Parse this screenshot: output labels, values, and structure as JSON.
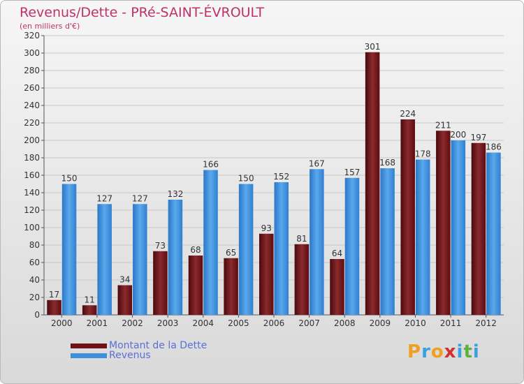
{
  "title": "Revenus/Dette - PRé-SAINT-ÉVROULT",
  "subtitle": "(en milliers d'€)",
  "chart_data": {
    "type": "bar",
    "categories": [
      "2000",
      "2001",
      "2002",
      "2003",
      "2004",
      "2005",
      "2006",
      "2007",
      "2008",
      "2009",
      "2010",
      "2011",
      "2012"
    ],
    "series": [
      {
        "name": "Montant de la Dette",
        "color": "#6e1016",
        "values": [
          17,
          11,
          34,
          73,
          68,
          65,
          93,
          81,
          64,
          301,
          224,
          211,
          197
        ]
      },
      {
        "name": "Revenus",
        "color": "#3d8fd9",
        "values": [
          150,
          127,
          127,
          132,
          166,
          150,
          152,
          167,
          157,
          168,
          178,
          200,
          186
        ]
      }
    ],
    "ylim": [
      0,
      320
    ],
    "yticks": [
      0,
      20,
      40,
      60,
      80,
      100,
      120,
      140,
      160,
      180,
      200,
      220,
      240,
      260,
      280,
      300,
      320
    ],
    "grid": true
  },
  "legend": {
    "dette_label": "Montant de la Dette",
    "revenus_label": "Revenus"
  },
  "logo": {
    "text": "Proxiti",
    "letters": [
      "P",
      "r",
      "o",
      "x",
      "i",
      "t",
      "i"
    ]
  }
}
